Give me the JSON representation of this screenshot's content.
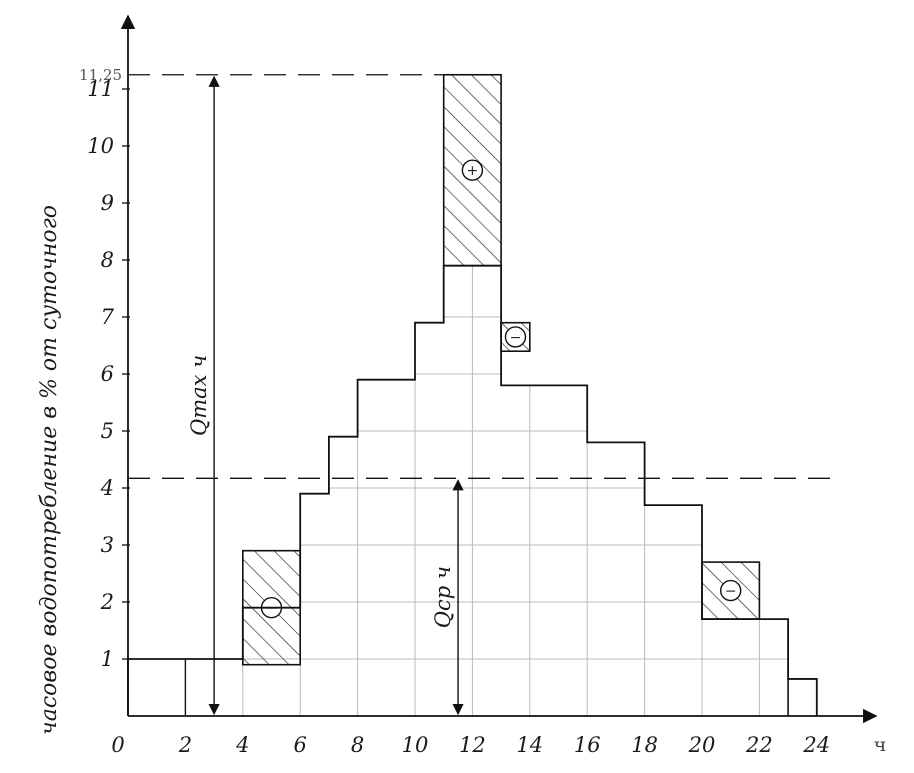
{
  "chart_data": {
    "type": "bar",
    "subtype": "step-histogram",
    "ylabel": "часовое водопотребление в % от суточного",
    "xlabel": "ч",
    "xlim": [
      0,
      24
    ],
    "ylim": [
      0,
      11.25
    ],
    "x_ticks": [
      "0",
      "2",
      "4",
      "6",
      "8",
      "10",
      "12",
      "14",
      "16",
      "18",
      "20",
      "22",
      "24"
    ],
    "y_ticks": [
      "1",
      "2",
      "3",
      "4",
      "5",
      "6",
      "7",
      "8",
      "9",
      "10",
      "11"
    ],
    "grid": true,
    "hour_intervals": [
      {
        "from": 0,
        "to": 4,
        "value": 1.0
      },
      {
        "from": 4,
        "to": 6,
        "value": 1.9
      },
      {
        "from": 6,
        "to": 7,
        "value": 3.9
      },
      {
        "from": 7,
        "to": 8,
        "value": 4.9
      },
      {
        "from": 8,
        "to": 10,
        "value": 5.9
      },
      {
        "from": 10,
        "to": 11,
        "value": 6.9
      },
      {
        "from": 11,
        "to": 13,
        "value": 7.9
      },
      {
        "from": 13,
        "to": 14,
        "value": 5.8
      },
      {
        "from": 14,
        "to": 16,
        "value": 5.8
      },
      {
        "from": 16,
        "to": 18,
        "value": 4.8
      },
      {
        "from": 18,
        "to": 20,
        "value": 3.7
      },
      {
        "from": 20,
        "to": 22,
        "value": 1.7
      },
      {
        "from": 22,
        "to": 23,
        "value": 1.7
      },
      {
        "from": 23,
        "to": 24,
        "value": 0.65
      }
    ],
    "hatched_regions": [
      {
        "from": 11,
        "to": 13,
        "bottom": 7.9,
        "top": 11.25,
        "sign": "+"
      },
      {
        "from": 13,
        "to": 14,
        "bottom": 6.4,
        "top": 6.9,
        "sign": "−"
      },
      {
        "from": 4,
        "to": 6,
        "bottom": 0.9,
        "top": 2.9,
        "sign": "−"
      },
      {
        "from": 20,
        "to": 22,
        "bottom": 1.7,
        "top": 2.7,
        "sign": "−"
      }
    ],
    "reference_lines": [
      {
        "value": 11.25,
        "label": "11,25"
      },
      {
        "value": 4.17
      }
    ],
    "dimension_arrows": [
      {
        "x": 3,
        "from": 0,
        "to": 11.25,
        "label": "Qmax ч"
      },
      {
        "x": 11.5,
        "from": 0,
        "to": 4.17,
        "label": "Qср ч"
      }
    ]
  }
}
